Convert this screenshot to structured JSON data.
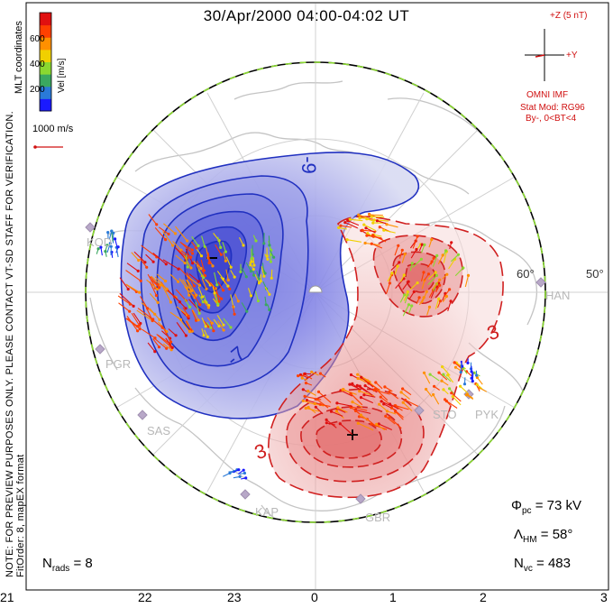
{
  "title": "30/Apr/2000 04:00-04:02 UT",
  "coordinates_label": "MLT coordinates",
  "watermark": {
    "line1": "NOTE: FOR PREVIEW PURPOSES ONLY. PLEASE CONTACT VT-SD STAFF FOR VERIFICATION.",
    "line2": "FitOrder: 8, mapEX format"
  },
  "colorbar": {
    "title": "Vel [m/s]",
    "ticks": [
      "200",
      "400",
      "600"
    ],
    "colors": [
      "#1a1aff",
      "#2a7ad8",
      "#3aa860",
      "#8ad830",
      "#f0d000",
      "#ff9000",
      "#ff4000",
      "#e01010"
    ]
  },
  "vector_scale_label": "1000 m/s",
  "imf": {
    "z_label": "+Z (5 nT)",
    "y_label": "+Y",
    "source": "OMNI IMF",
    "model": "Stat Mod: RG96",
    "condition": "By-, 0<BT<4",
    "color": "#d01010"
  },
  "latitude_labels": [
    "60°",
    "50°"
  ],
  "radar_labels": [
    "KAP",
    "SAS",
    "PGR",
    "KOD",
    "HAN",
    "STO",
    "PYK",
    "GBR"
  ],
  "potential_labels": {
    "negative_max": "-9",
    "negative_inner": "-7",
    "positive_max": "3",
    "positive_second": "3"
  },
  "stats": {
    "phi_pc_label": "Φ",
    "phi_pc_sub": "pc",
    "phi_pc_value": "= 73 kV",
    "lambda_hm_label": "Λ",
    "lambda_hm_sub": "HM",
    "lambda_hm_value": "= 58°",
    "n_vc_label": "N",
    "n_vc_sub": "vc",
    "n_vc_value": "= 483",
    "n_rads_label": "N",
    "n_rads_sub": "rads",
    "n_rads_value": "= 8"
  },
  "mlt_axis": [
    "21",
    "22",
    "23",
    "0",
    "1",
    "2",
    "3"
  ],
  "colors": {
    "negative_cell": "#3040d0",
    "positive_cell": "#d02020",
    "coastline": "#c4c4c4",
    "grid": "#d0d0d0"
  }
}
